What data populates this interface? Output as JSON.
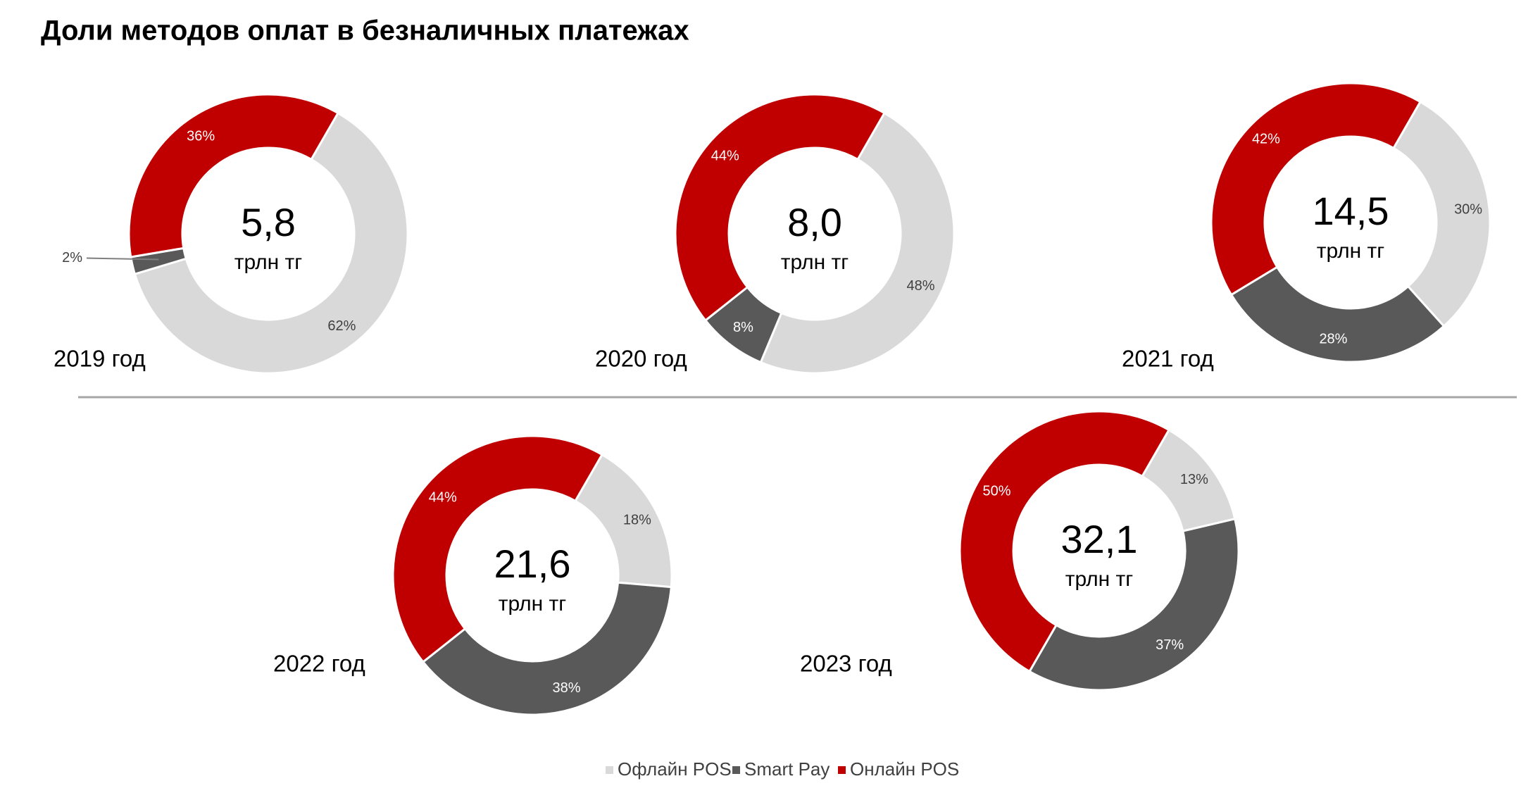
{
  "title": "Доли методов оплат в безналичных платежах",
  "chart_data": [
    {
      "type": "donut",
      "title": "2019 год",
      "total": {
        "value": 5.8,
        "label": "5,8"
      },
      "unit": "трлн тг",
      "categories": [
        "Офлайн POS",
        "Smart Pay",
        "Онлайн POS"
      ],
      "colors": [
        "#d9d9d9",
        "#595959",
        "#c00000"
      ],
      "values": [
        62,
        2,
        36
      ],
      "value_labels": [
        "62%",
        "2%",
        "36%"
      ]
    },
    {
      "type": "donut",
      "title": "2020 год",
      "total": {
        "value": 8.0,
        "label": "8,0"
      },
      "unit": "трлн тг",
      "categories": [
        "Офлайн POS",
        "Smart Pay",
        "Онлайн POS"
      ],
      "colors": [
        "#d9d9d9",
        "#595959",
        "#c00000"
      ],
      "values": [
        48,
        8,
        44
      ],
      "value_labels": [
        "48%",
        "8%",
        "44%"
      ]
    },
    {
      "type": "donut",
      "title": "2021 год",
      "total": {
        "value": 14.5,
        "label": "14,5"
      },
      "unit": "трлн тг",
      "categories": [
        "Офлайн POS",
        "Smart Pay",
        "Онлайн POS"
      ],
      "colors": [
        "#d9d9d9",
        "#595959",
        "#c00000"
      ],
      "values": [
        30,
        28,
        42
      ],
      "value_labels": [
        "30%",
        "28%",
        "42%"
      ]
    },
    {
      "type": "donut",
      "title": "2022 год",
      "total": {
        "value": 21.6,
        "label": "21,6"
      },
      "unit": "трлн тг",
      "categories": [
        "Офлайн POS",
        "Smart Pay",
        "Онлайн POS"
      ],
      "colors": [
        "#d9d9d9",
        "#595959",
        "#c00000"
      ],
      "values": [
        18,
        38,
        44
      ],
      "value_labels": [
        "18%",
        "38%",
        "44%"
      ]
    },
    {
      "type": "donut",
      "title": "2023 год",
      "total": {
        "value": 32.1,
        "label": "32,1"
      },
      "unit": "трлн тг",
      "categories": [
        "Офлайн POS",
        "Smart Pay",
        "Онлайн POS"
      ],
      "colors": [
        "#d9d9d9",
        "#595959",
        "#c00000"
      ],
      "values": [
        13,
        37,
        50
      ],
      "value_labels": [
        "13%",
        "37%",
        "50%"
      ]
    }
  ]
}
